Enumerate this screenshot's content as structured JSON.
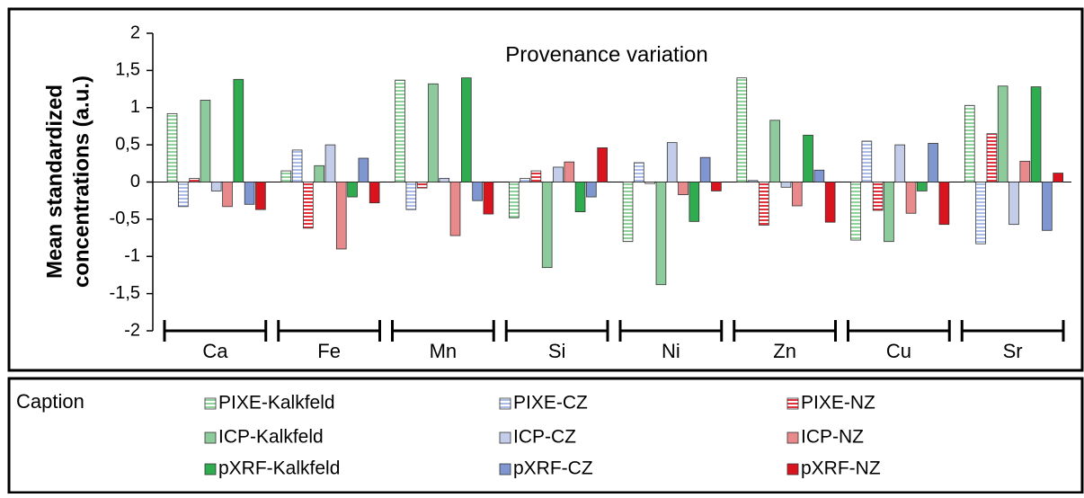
{
  "chart_data": {
    "type": "bar",
    "title": "Provenance variation",
    "y_label": [
      "Mean standardized",
      "concentrations (a.u.)"
    ],
    "legend_title": "Caption",
    "categories": [
      "Ca",
      "Fe",
      "Mn",
      "Si",
      "Ni",
      "Zn",
      "Cu",
      "Sr"
    ],
    "ylim": [
      -2,
      2
    ],
    "yticks": [
      -2,
      {
        "value": -1.5,
        "label": "-1,5"
      },
      -1,
      {
        "value": -0.5,
        "label": "-0,5"
      },
      0,
      {
        "value": 0.5,
        "label": "0,5"
      },
      1,
      {
        "value": 1.5,
        "label": "1,5"
      },
      2
    ],
    "grid": false,
    "series": [
      {
        "name": "PIXE-Kalkfeld",
        "color": "#8fd19b",
        "hatch": true,
        "values": [
          0.92,
          0.15,
          1.37,
          -0.48,
          -0.8,
          1.4,
          -0.78,
          1.03
        ]
      },
      {
        "name": "PIXE-CZ",
        "color": "#a9bbe6",
        "hatch": true,
        "values": [
          -0.33,
          0.43,
          -0.37,
          0.05,
          0.26,
          0.02,
          0.55,
          -0.83
        ]
      },
      {
        "name": "PIXE-NZ",
        "color": "#e0303a",
        "hatch": true,
        "values": [
          0.05,
          -0.62,
          -0.08,
          0.15,
          -0.02,
          -0.58,
          -0.38,
          0.65
        ]
      },
      {
        "name": "ICP-Kalkfeld",
        "color": "#8ecb9c",
        "hatch": false,
        "values": [
          1.1,
          0.22,
          1.32,
          -1.15,
          -1.38,
          0.83,
          -0.8,
          1.29
        ]
      },
      {
        "name": "ICP-CZ",
        "color": "#c3cdea",
        "hatch": false,
        "values": [
          -0.12,
          0.5,
          0.05,
          0.2,
          0.53,
          -0.07,
          0.5,
          -0.57
        ]
      },
      {
        "name": "ICP-NZ",
        "color": "#e8898b",
        "hatch": false,
        "values": [
          -0.33,
          -0.9,
          -0.72,
          0.27,
          -0.17,
          -0.32,
          -0.42,
          0.28
        ]
      },
      {
        "name": "pXRF-Kalkfeld",
        "color": "#2fab50",
        "hatch": false,
        "values": [
          1.38,
          -0.2,
          1.4,
          -0.4,
          -0.53,
          0.63,
          -0.12,
          1.28
        ]
      },
      {
        "name": "pXRF-CZ",
        "color": "#7f96d0",
        "hatch": false,
        "values": [
          -0.3,
          0.32,
          -0.25,
          -0.2,
          0.33,
          0.16,
          0.52,
          -0.65
        ]
      },
      {
        "name": "pXRF-NZ",
        "color": "#d9141e",
        "hatch": false,
        "values": [
          -0.37,
          -0.28,
          -0.43,
          0.46,
          -0.12,
          -0.54,
          -0.57,
          0.12
        ]
      }
    ]
  }
}
